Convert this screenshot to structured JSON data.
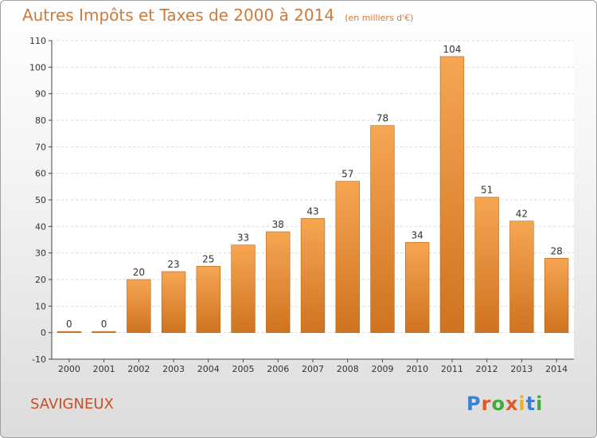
{
  "header": {
    "title": "Autres Impôts et Taxes de 2000 à 2014",
    "subtitle": "(en milliers d'€)"
  },
  "footer": {
    "location": "SAVIGNEUX",
    "logo": "Proxiti",
    "logo_colors": [
      "#3d7fd0",
      "#e05a28",
      "#44a83a",
      "#e05a28",
      "#f0b020",
      "#3d7fd0",
      "#44a83a"
    ]
  },
  "colors": {
    "bar_light": "#f6a652",
    "bar_dark": "#cf7320",
    "title": "#d07a3a",
    "location": "#c84e2a"
  },
  "chart_data": {
    "type": "bar",
    "categories": [
      "2000",
      "2001",
      "2002",
      "2003",
      "2004",
      "2005",
      "2006",
      "2007",
      "2008",
      "2009",
      "2010",
      "2011",
      "2012",
      "2013",
      "2014"
    ],
    "values": [
      0,
      0,
      20,
      23,
      25,
      33,
      38,
      43,
      57,
      78,
      34,
      104,
      51,
      42,
      28
    ],
    "title": "Autres Impôts et Taxes de 2000 à 2014",
    "subtitle": "(en milliers d'€)",
    "xlabel": "",
    "ylabel": "",
    "ylim": [
      -10,
      110
    ],
    "yticks": [
      -10,
      0,
      10,
      20,
      30,
      40,
      50,
      60,
      70,
      80,
      90,
      100,
      110
    ],
    "grid": true,
    "legend": "none"
  }
}
